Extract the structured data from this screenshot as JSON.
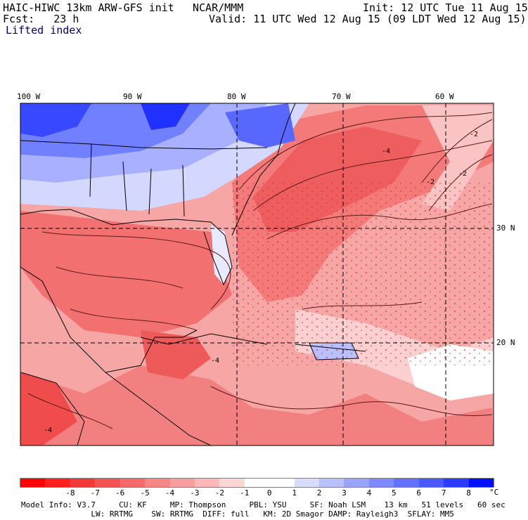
{
  "header": {
    "model": "HAIC-HIWC 13km ARW-GFS init",
    "org": "NCAR/MMM",
    "init": "Init: 12 UTC Tue 11 Aug 15",
    "fcst": "Fcst:   23 h",
    "valid": "Valid: 11 UTC Wed 12 Aug 15 (09 LDT Wed 12 Aug 15)",
    "field": "Lifted index"
  },
  "map": {
    "lon_labels": [
      "100 W",
      "90 W",
      "80 W",
      "70 W",
      "60 W"
    ],
    "lat_labels": [
      "30 N",
      "20 N"
    ],
    "contour_labels": [
      "-4",
      "-2",
      "-2",
      "-4",
      "-2",
      "-4"
    ]
  },
  "colorbar": {
    "colors": [
      "#ff0000",
      "#ff2020",
      "#f23a3a",
      "#f35555",
      "#f56b6b",
      "#f78585",
      "#f99e9e",
      "#fbb8b8",
      "#fdd6d6",
      "#ffffff",
      "#ffffff",
      "#d8dcff",
      "#b8c0ff",
      "#9aa4ff",
      "#7e88ff",
      "#6470ff",
      "#4a58ff",
      "#2a3aff",
      "#0010ff"
    ],
    "labels": [
      "-8",
      "-7",
      "-6",
      "-5",
      "-4",
      "-3",
      "-2",
      "-1",
      "0",
      "1",
      "2",
      "3",
      "4",
      "5",
      "6",
      "7",
      "8"
    ],
    "unit": "°C"
  },
  "model_info": {
    "line1": "Model Info: V3.7     CU: KF     MP: Thompson     PBL: YSU     SF: Noah LSM    13 km   51 levels   60 sec",
    "line2": "               LW: RRTMG    SW: RRTMG  DIFF: full   KM: 2D Smagor DAMP: Rayleigh3  SFLAY: MM5"
  }
}
